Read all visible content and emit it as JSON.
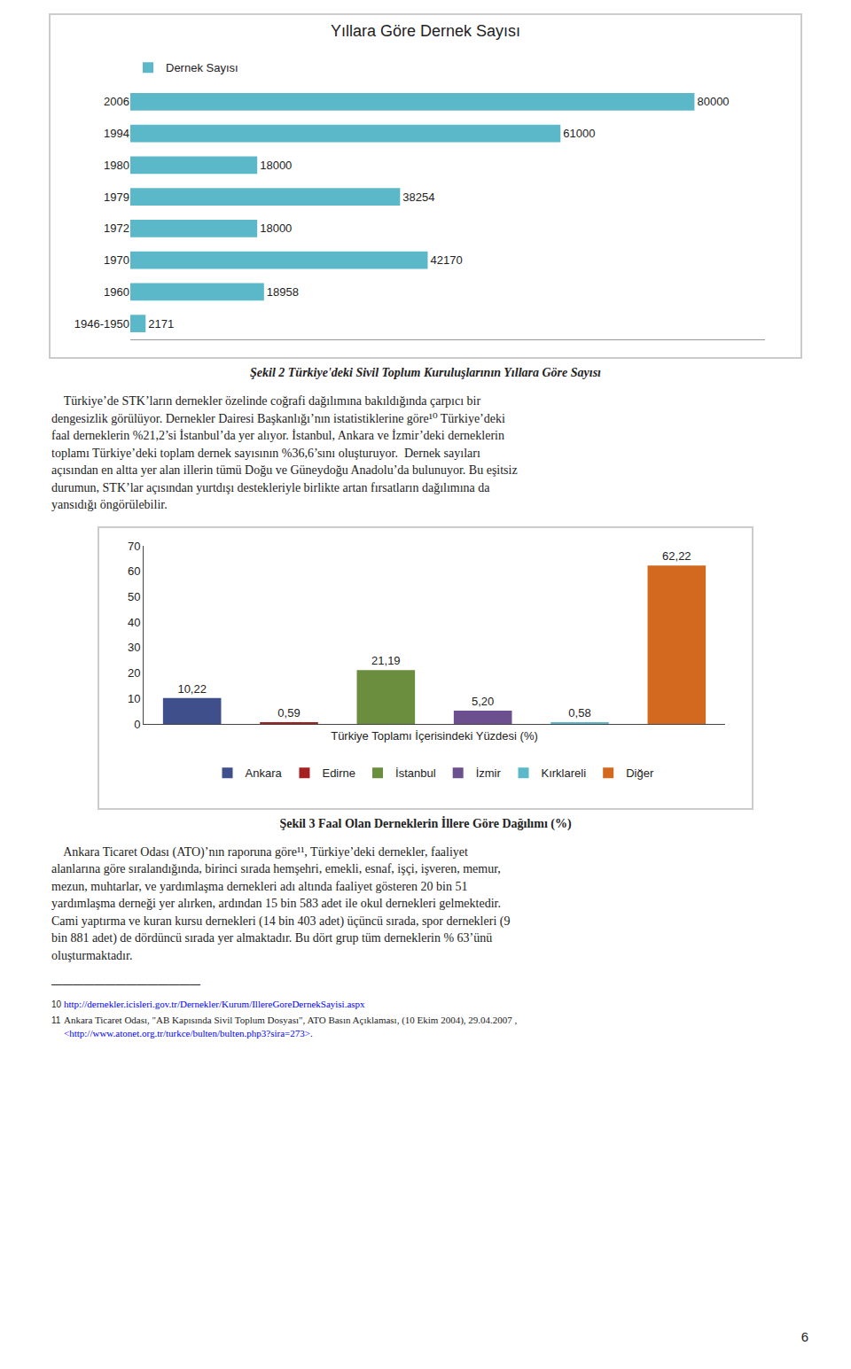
{
  "chart_data": [
    {
      "type": "bar",
      "orientation": "horizontal",
      "title": "Yıllara Göre Dernek Sayısı",
      "categories": [
        "2006",
        "1994",
        "1980",
        "1979",
        "1972",
        "1970",
        "1960",
        "1946-1950"
      ],
      "series": [
        {
          "name": "Dernek Sayısı",
          "color": "#5BB8C9",
          "values": [
            80000,
            61000,
            18000,
            38254,
            18000,
            42170,
            18958,
            2171
          ]
        }
      ],
      "xlim": [
        0,
        90000
      ],
      "data_labels": true,
      "tick_labels": "y",
      "grid": false,
      "legend": "top",
      "caption": "Şekil 2 Türkiye'deki Sivil Toplum Kuruluşlarının Yıllara Göre Sayısı"
    },
    {
      "type": "bar",
      "categories": [
        "Ankara",
        "Edirne",
        "İstanbul",
        "İzmir",
        "Kırklareli",
        "Diğer"
      ],
      "values": [
        10.22,
        0.59,
        21.19,
        5.2,
        0.58,
        62.22
      ],
      "value_labels": [
        "10,22",
        "0,59",
        "21,19",
        "5,20",
        "0,58",
        "62,22"
      ],
      "colors": [
        "#3F4F8C",
        "#A52020",
        "#6B8E3E",
        "#6B4F8E",
        "#5BB8C9",
        "#D2691E"
      ],
      "xlabel": "Türkiye Toplamı İçerisindeki Yüzdesi (%)",
      "ylim": [
        0,
        70
      ],
      "yticks": [
        0,
        10,
        20,
        30,
        40,
        50,
        60,
        70
      ],
      "data_labels": true,
      "tick_labels": "y",
      "grid": false,
      "legend": "bottom",
      "caption": "Şekil 3 Faal Olan Derneklerin İllere Göre Dağılımı (%)"
    }
  ],
  "paragraphs": [
    [
      "    Türkiye’de STK’ların dernekler özelinde coğrafi dağılımına bakıldığında çarpıcı bir",
      "dengesizlik görülüyor. Dernekler Dairesi Başkanlığı’nın istatistiklerine göre¹⁰ Türkiye’deki",
      "faal derneklerin %21,2’si İstanbul’da yer alıyor. İstanbul, Ankara ve İzmir’deki derneklerin",
      "toplamı Türkiye’deki toplam dernek sayısının %36,6’sını oluşturuyor.  Dernek sayıları",
      "açısından en altta yer alan illerin tümü Doğu ve Güneydoğu Anadolu’da bulunuyor. Bu eşitsiz",
      "durumun, STK’lar açısından yurtdışı destekleriyle birlikte artan fırsatların dağılımına da",
      "yansıdığı öngörülebilir."
    ],
    [
      "    Ankara Ticaret Odası (ATO)’nın raporuna göre¹¹, Türkiye’deki dernekler, faaliyet",
      "alanlarına göre sıralandığında, birinci sırada hemşehri, emekli, esnaf, işçi, işveren, memur,",
      "mezun, muhtarlar, ve yardımlaşma dernekleri adı altında faaliyet gösteren 20 bin 51",
      "yardımlaşma derneği yer alırken, ardından 15 bin 583 adet ile okul dernekleri gelmektedir.",
      "Cami yaptırma ve kuran kursu dernekleri (14 bin 403 adet) üçüncü sırada, spor dernekleri (9",
      "bin 881 adet) de dördüncü sırada yer almaktadır. Bu dört grup tüm derneklerin % 63’ünü",
      "oluşturmaktadır."
    ]
  ],
  "footnote_separator": "——————————————",
  "footnotes": [
    {
      "number": "10",
      "lines": [
        "http://dernekler.icisleri.gov.tr/Dernekler/Kurum/IllereGoreDernekSayisi.aspx"
      ]
    },
    {
      "number": "11",
      "lines": [
        " Ankara Ticaret Odası, \"AB Kapısında Sivil Toplum Dosyası\", ATO Basın Açıklaması, (10 Ekim 2004), 29.04.2007 ,",
        "<http://www.atonet.org.tr/turkce/bulten/bulten.php3?sira=273>."
      ]
    }
  ],
  "page_number": "6"
}
